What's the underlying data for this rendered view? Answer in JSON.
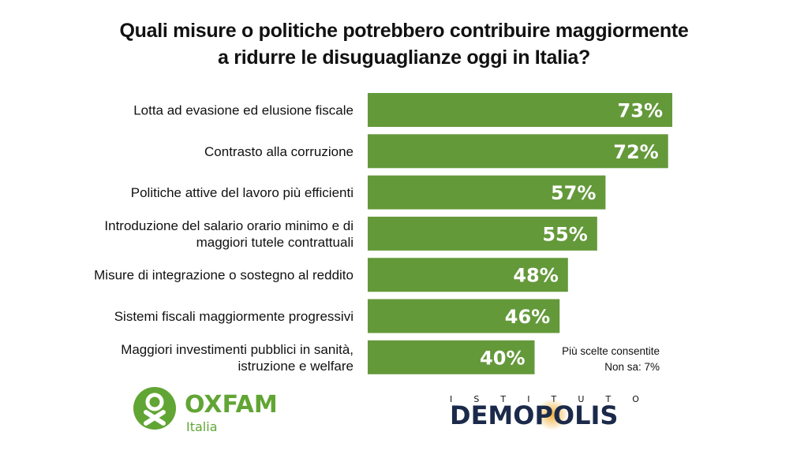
{
  "title_lines": [
    "Quali misure o politiche potrebbero contribuire maggiormente",
    "a ridurre le disuguaglianze oggi in Italia?"
  ],
  "note_lines": [
    "Più scelte consentite",
    "Non sa: 7%"
  ],
  "colors": {
    "bar": "#64993a",
    "bar_label": "#ffffff",
    "text": "#111111",
    "oxfam_green": "#61a534",
    "demopolis_navy": "#1b2a4a"
  },
  "logos": {
    "oxfam_name": "OXFAM",
    "oxfam_sub": "Italia",
    "demopolis_top": [
      "I",
      "S",
      "T",
      "I",
      "T",
      "U",
      "T",
      "O"
    ],
    "demopolis_name": "DEMOPOLIS"
  },
  "chart_data": {
    "type": "bar",
    "orientation": "horizontal",
    "categories": [
      [
        "Lotta ad evasione ed elusione fiscale"
      ],
      [
        "Contrasto alla corruzione"
      ],
      [
        "Politiche attive del lavoro più efficienti"
      ],
      [
        "Introduzione del salario orario minimo e di",
        "maggiori tutele contrattuali"
      ],
      [
        "Misure di integrazione o sostegno al reddito"
      ],
      [
        "Sistemi fiscali maggiormente progressivi"
      ],
      [
        "Maggiori investimenti pubblici in sanità,",
        "istruzione e welfare"
      ]
    ],
    "values": [
      73,
      72,
      57,
      55,
      48,
      46,
      40
    ],
    "value_labels": [
      "73%",
      "72%",
      "57%",
      "55%",
      "48%",
      "46%",
      "40%"
    ],
    "xlim": [
      0,
      73
    ],
    "grid": false,
    "legend": "none"
  }
}
